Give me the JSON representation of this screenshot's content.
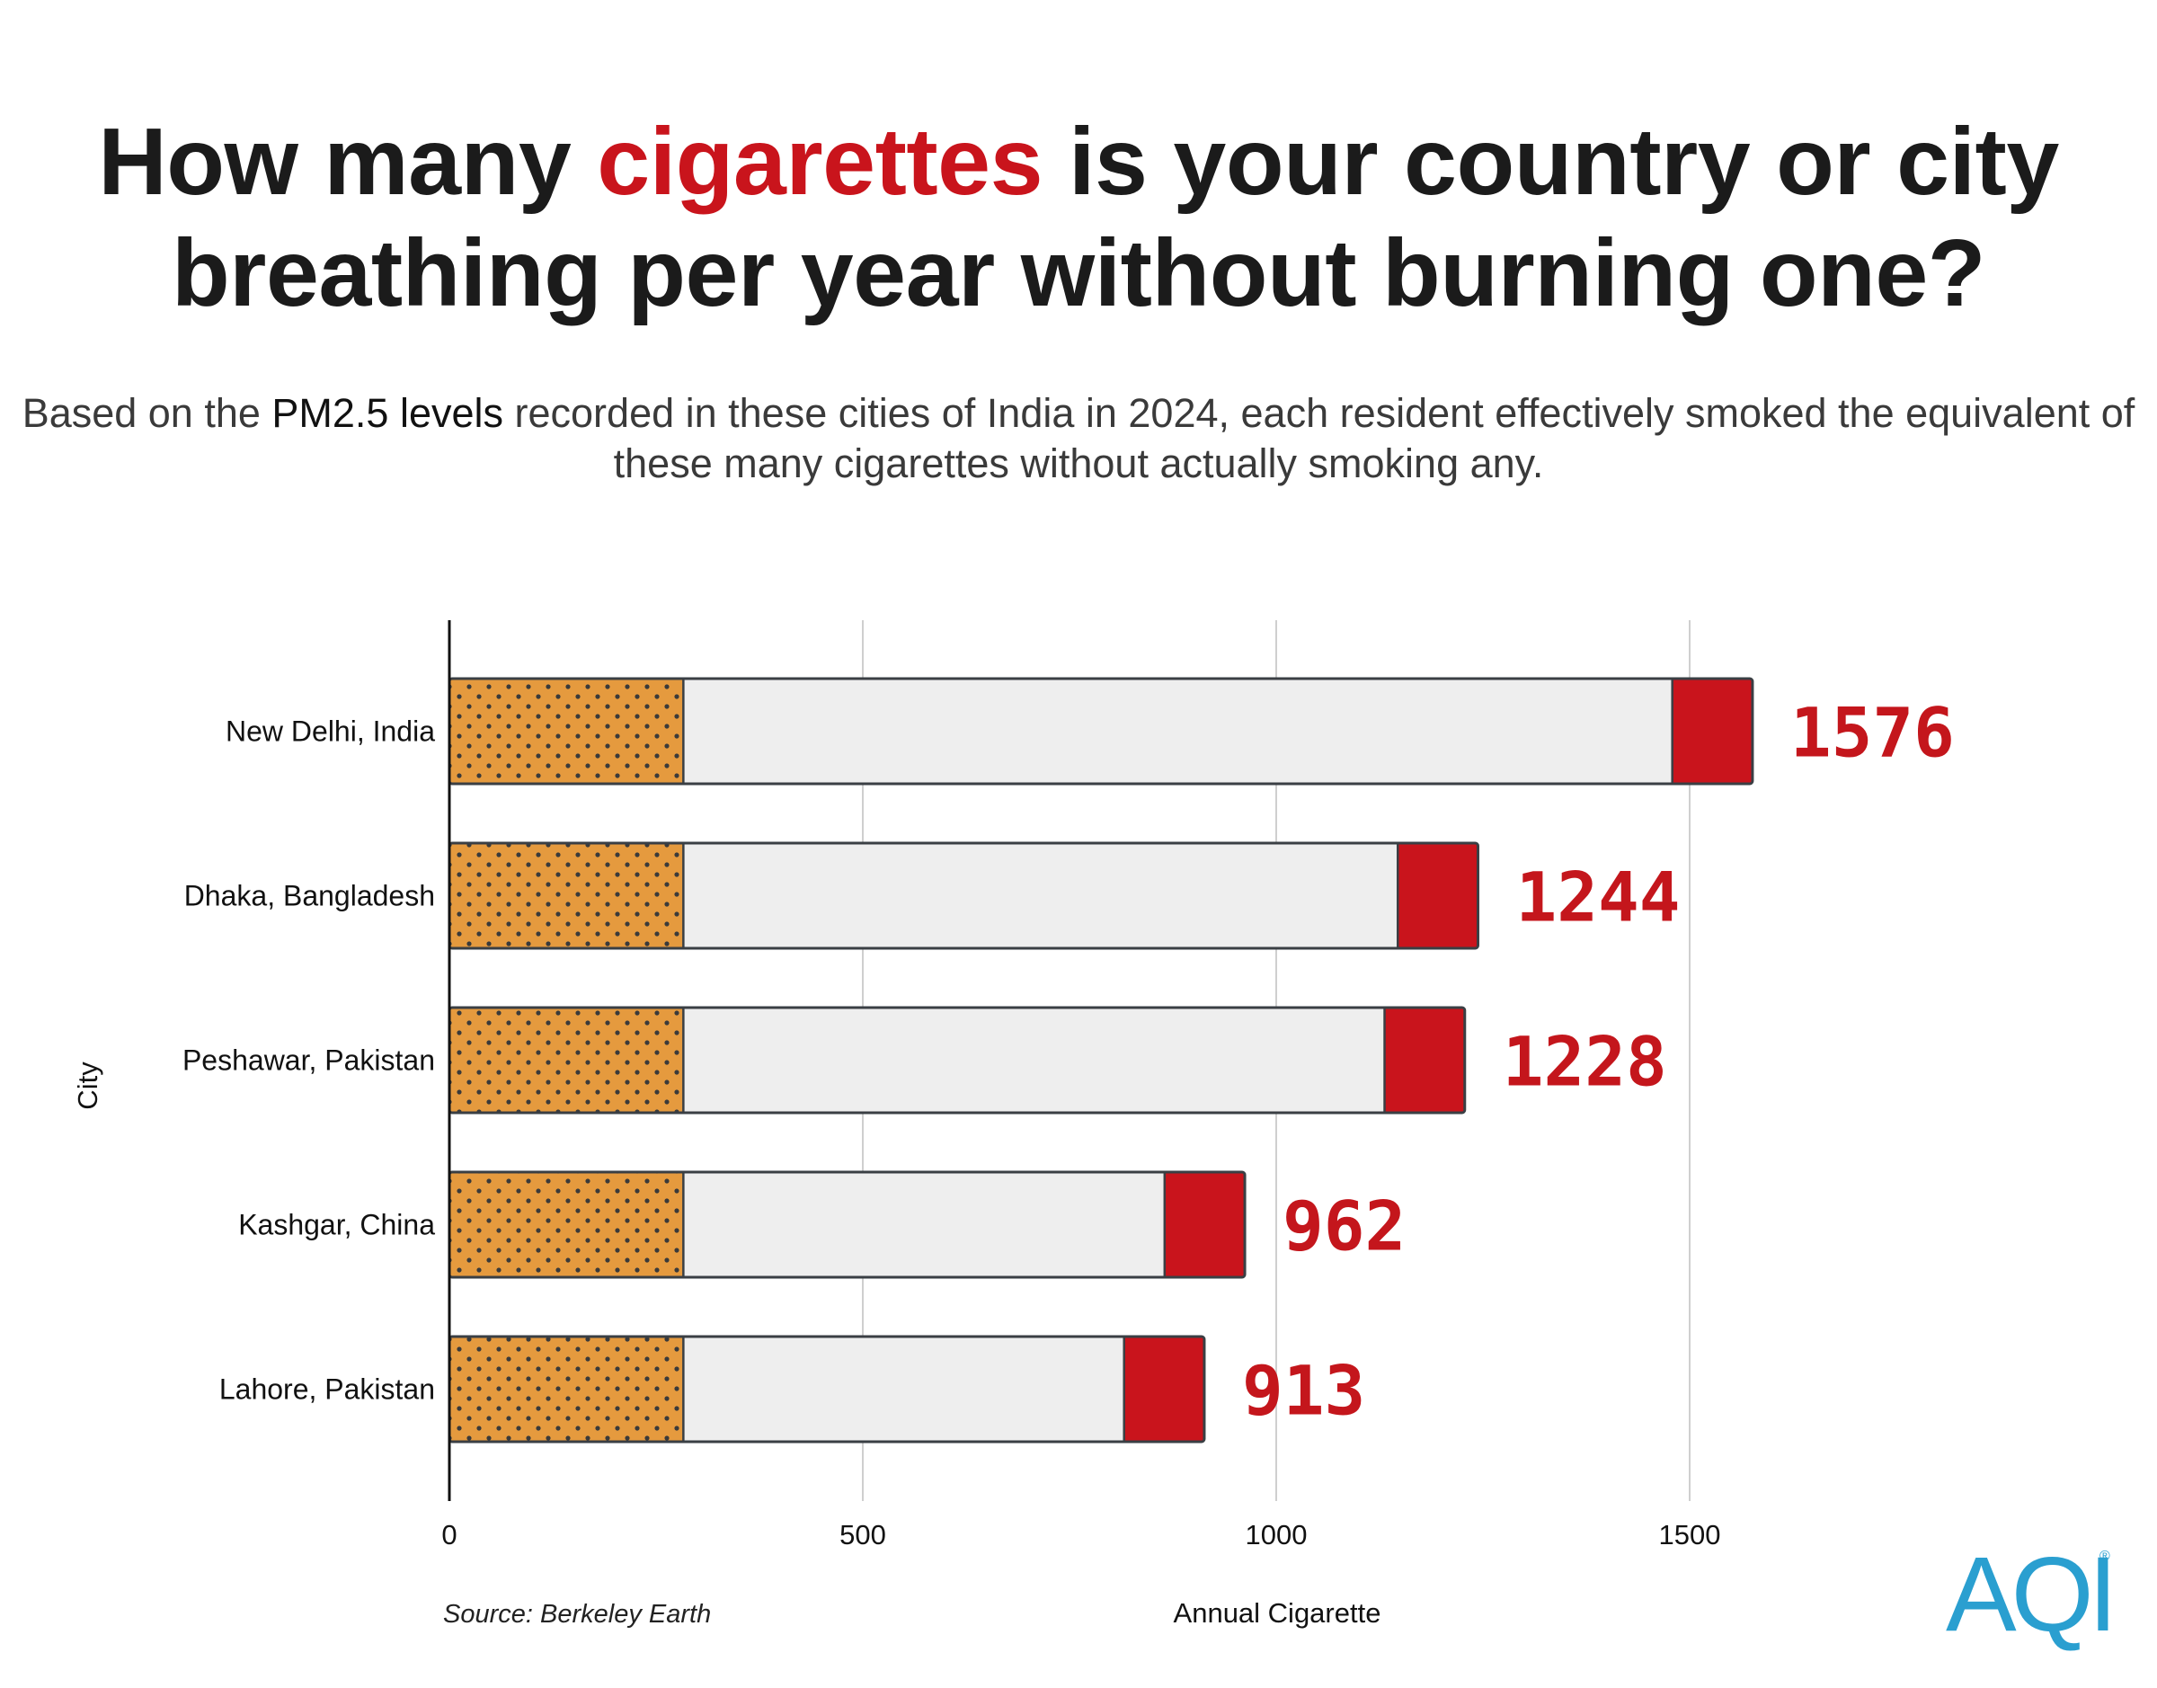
{
  "header": {
    "title_before": "How many ",
    "title_highlight": "cigarettes",
    "title_after": " is your country or city breathing per year without burning one?",
    "subtitle_before": "Based on the ",
    "subtitle_emphasis": "PM2.5 levels",
    "subtitle_after": " recorded in these cities of India in 2024, each resident effectively smoked the equivalent of these many cigarettes without actually smoking any."
  },
  "colors": {
    "filter": "#e59a3e",
    "filter_dots": "#3a3a3a",
    "paper": "#eeeeee",
    "ember": "#c9141c",
    "outline": "#3a3f44",
    "value_text": "#c4161c",
    "highlight": "#c9141c",
    "logo": "#2a9fd0"
  },
  "chart_data": {
    "type": "bar",
    "orientation": "horizontal",
    "categories": [
      "New Delhi, India",
      "Dhaka, Bangladesh",
      "Peshawar, Pakistan",
      "Kashgar, China",
      "Lahore, Pakistan"
    ],
    "values": [
      1576,
      1244,
      1228,
      962,
      913
    ],
    "value_labels": [
      "1576",
      "1244",
      "1228",
      "962",
      "913"
    ],
    "xlabel": "Annual Cigarette",
    "ylabel": "City",
    "xlim": [
      0,
      1650
    ],
    "x_ticks": [
      0,
      500,
      1000,
      1500
    ],
    "x_tick_labels": [
      "0",
      "500",
      "1000",
      "1500"
    ],
    "grid": "vertical",
    "bar_style": "cigarette",
    "filter_value": 283,
    "ember_value": 97
  },
  "footer": {
    "source": "Source: Berkeley Earth"
  },
  "logo": {
    "text": "AQI",
    "mark": "®"
  }
}
